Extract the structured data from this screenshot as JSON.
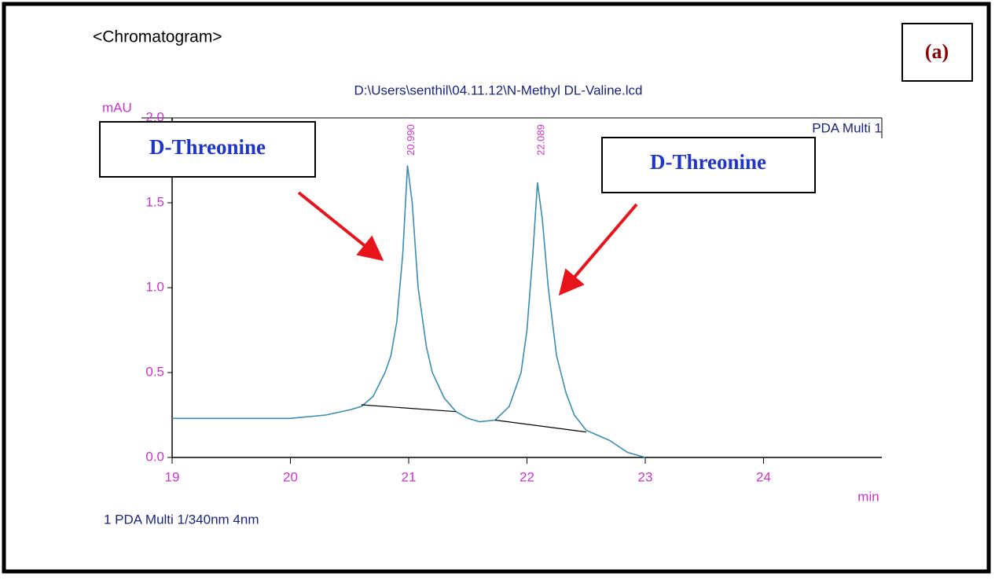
{
  "chart_data": {
    "type": "line",
    "heading": "<Chromatogram>",
    "panel_label": "(a)",
    "title": "D:\\Users\\senthil\\04.11.12\\N-Methyl DL-Valine.lcd",
    "y_label": "mAU",
    "x_label": "min",
    "legend": "1  PDA Multi 1/340nm 4nm",
    "annotations": [
      "D-Threonine",
      "D-Threonine"
    ],
    "xlim": [
      19,
      25
    ],
    "ylim": [
      0,
      2
    ],
    "xticks": [
      19,
      20,
      21,
      22,
      23,
      24
    ],
    "yticks": [
      {
        "value": 0,
        "label": "0.0"
      },
      {
        "value": 0.5,
        "label": "0.5"
      },
      {
        "value": 1,
        "label": "1.0"
      },
      {
        "value": 1.5,
        "label": "1.5"
      },
      {
        "value": 2,
        "label": "2.0"
      }
    ],
    "peak_labels": [
      {
        "value": 20.99,
        "label": "20.990"
      },
      {
        "value": 22.089,
        "label": "22.089"
      }
    ],
    "series": [
      {
        "name": "PDA Multi 1",
        "color": "#3b8db3",
        "x": [
          19.0,
          19.5,
          20.0,
          20.3,
          20.5,
          20.6,
          20.7,
          20.8,
          20.85,
          20.9,
          20.95,
          20.99,
          21.03,
          21.08,
          21.15,
          21.2,
          21.3,
          21.4,
          21.5,
          21.6,
          21.73,
          21.85,
          21.95,
          22.0,
          22.05,
          22.089,
          22.13,
          22.18,
          22.25,
          22.33,
          22.4,
          22.5,
          22.7,
          22.85,
          23.0
        ],
        "values": [
          0.23,
          0.23,
          0.23,
          0.25,
          0.28,
          0.3,
          0.36,
          0.5,
          0.6,
          0.8,
          1.2,
          1.72,
          1.5,
          1.0,
          0.65,
          0.5,
          0.35,
          0.27,
          0.23,
          0.21,
          0.22,
          0.3,
          0.5,
          0.75,
          1.2,
          1.62,
          1.4,
          1.0,
          0.6,
          0.38,
          0.25,
          0.16,
          0.1,
          0.03,
          0.0
        ]
      }
    ],
    "baselines": [
      {
        "x": [
          20.6,
          21.4
        ],
        "values": [
          0.31,
          0.27
        ]
      },
      {
        "x": [
          21.73,
          22.5
        ],
        "values": [
          0.22,
          0.15
        ]
      }
    ]
  }
}
